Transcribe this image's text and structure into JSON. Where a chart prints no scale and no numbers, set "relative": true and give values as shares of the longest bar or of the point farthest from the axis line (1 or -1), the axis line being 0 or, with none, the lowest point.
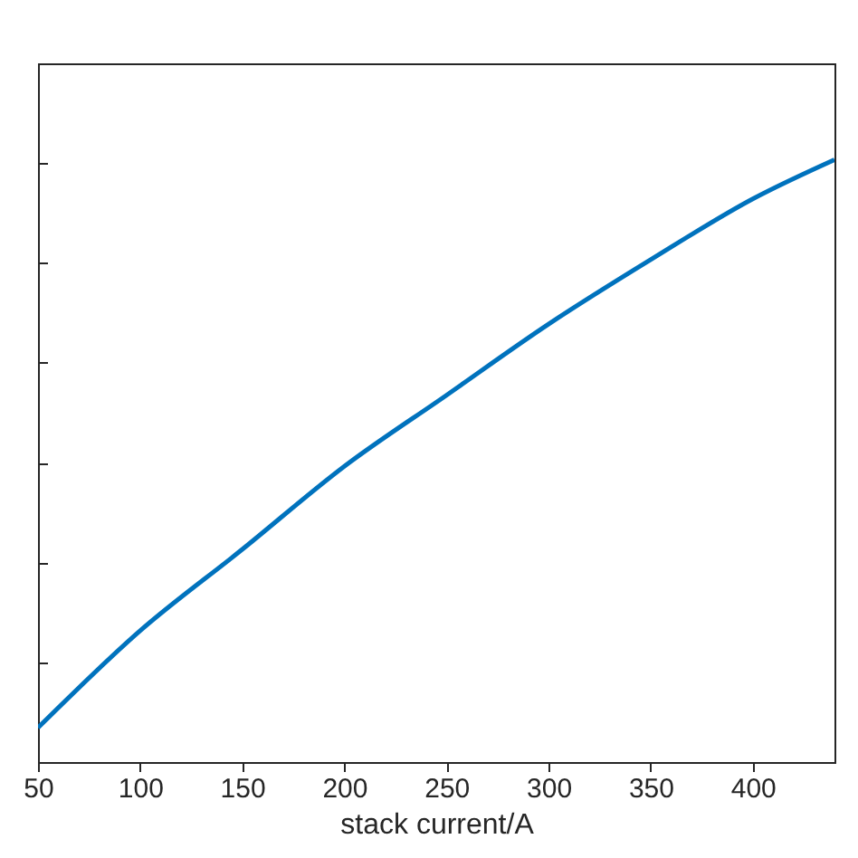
{
  "chart_data": {
    "type": "line",
    "xlabel": "stack current/A",
    "relative": true,
    "x": [
      50,
      100,
      150,
      200,
      250,
      300,
      350,
      400,
      440
    ],
    "series": [
      {
        "color": "#0072bd",
        "values": [
          0.057,
          0.218,
          0.353,
          0.491,
          0.609,
          0.727,
          0.834,
          0.935,
          1
        ]
      }
    ],
    "xlim": [
      50,
      440
    ],
    "xticks": [
      50,
      100,
      150,
      200,
      250,
      300,
      350,
      400
    ],
    "grid": false,
    "marker": "none",
    "line_style": "solid",
    "legend": false
  }
}
